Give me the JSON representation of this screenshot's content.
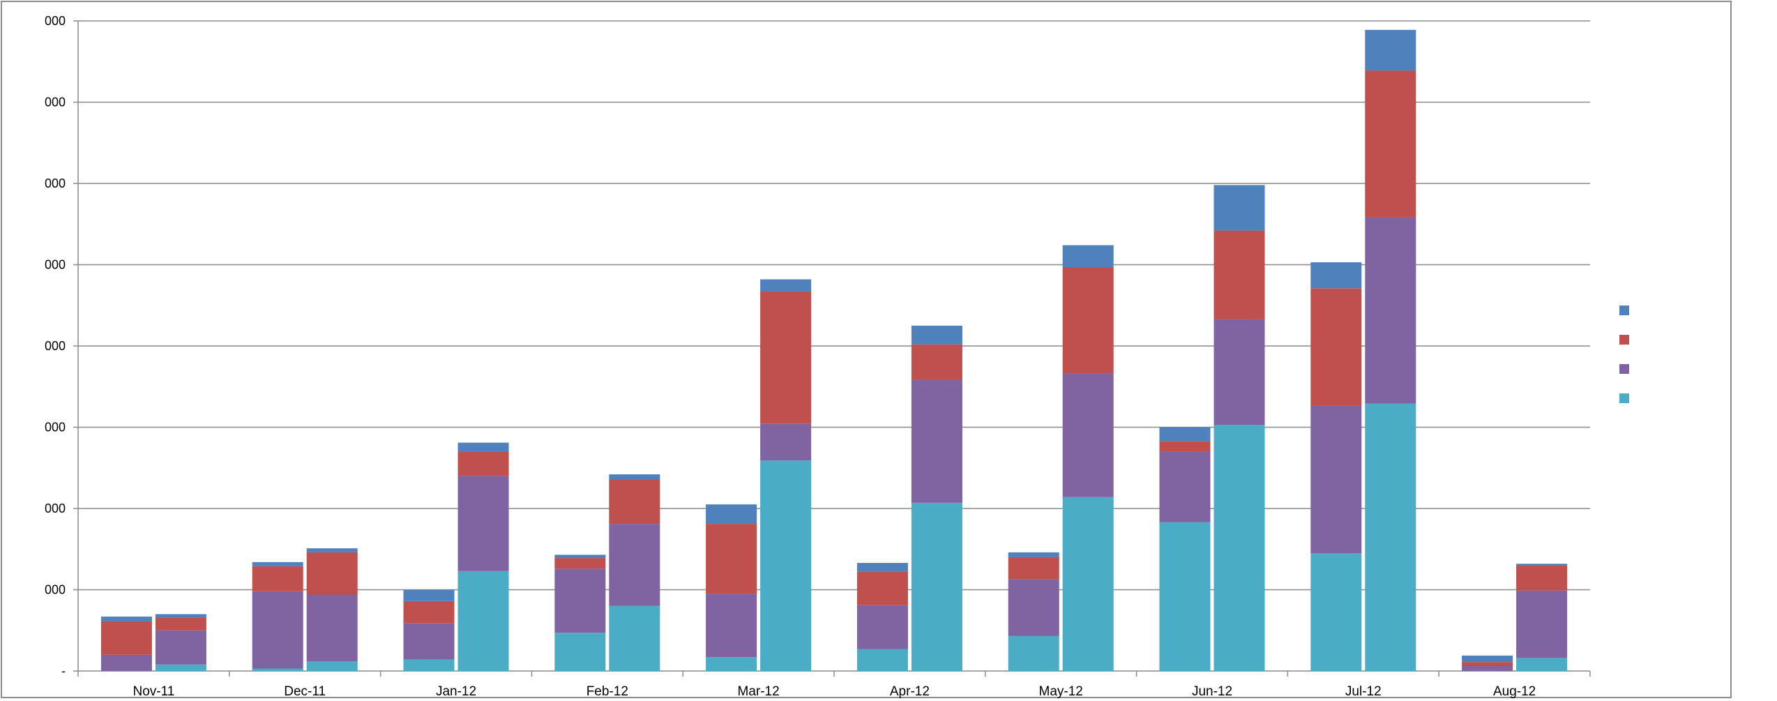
{
  "chart_data": {
    "type": "bar",
    "stacked": true,
    "categories": [
      "Nov-11",
      "Dec-11",
      "Jan-12",
      "Feb-12",
      "Mar-12",
      "Apr-12",
      "May-12",
      "Jun-12",
      "Jul-12",
      "Aug-12"
    ],
    "bars_per_category": 2,
    "ylim": [
      0,
      8000
    ],
    "y_tick_values": [
      0,
      1000,
      2000,
      3000,
      4000,
      5000,
      6000,
      7000,
      8000
    ],
    "y_tick_labels": [
      "-",
      "000",
      "000",
      "000",
      "000",
      "000",
      "000",
      "000",
      "000"
    ],
    "grid": true,
    "legend_position": "right",
    "legend_names_visible": false,
    "series": [
      {
        "color": "#4BACC6",
        "values": [
          [
            0,
            80
          ],
          [
            30,
            120
          ],
          [
            140,
            1230
          ],
          [
            470,
            800
          ],
          [
            170,
            2590
          ],
          [
            270,
            2070
          ],
          [
            430,
            2140
          ],
          [
            1830,
            3030
          ],
          [
            1450,
            3290
          ],
          [
            0,
            160
          ]
        ]
      },
      {
        "color": "#8064A2",
        "values": [
          [
            200,
            420
          ],
          [
            950,
            820
          ],
          [
            450,
            1170
          ],
          [
            790,
            1010
          ],
          [
            780,
            450
          ],
          [
            540,
            1510
          ],
          [
            700,
            1520
          ],
          [
            870,
            1300
          ],
          [
            1820,
            2290
          ],
          [
            60,
            830
          ]
        ]
      },
      {
        "color": "#C0504D",
        "values": [
          [
            410,
            160
          ],
          [
            310,
            520
          ],
          [
            270,
            300
          ],
          [
            130,
            550
          ],
          [
            860,
            1630
          ],
          [
            410,
            440
          ],
          [
            270,
            1310
          ],
          [
            130,
            1090
          ],
          [
            1440,
            1810
          ],
          [
            50,
            310
          ]
        ]
      },
      {
        "color": "#4F81BD",
        "values": [
          [
            60,
            40
          ],
          [
            50,
            50
          ],
          [
            140,
            110
          ],
          [
            40,
            60
          ],
          [
            240,
            150
          ],
          [
            110,
            230
          ],
          [
            60,
            270
          ],
          [
            170,
            560
          ],
          [
            320,
            500
          ],
          [
            80,
            20
          ]
        ]
      }
    ]
  }
}
